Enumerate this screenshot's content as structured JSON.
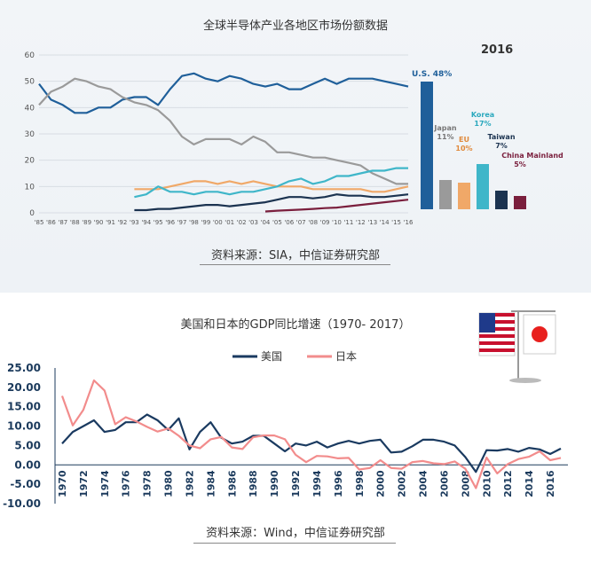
{
  "top": {
    "title": "全球半导体产业各地区市场份额数据",
    "source": "资料来源：SIA，中信证券研究部",
    "year_label": "2016"
  },
  "bottom": {
    "title": "美国和日本的GDP同比增速（1970- 2017）",
    "source": "资料来源：Wind，中信证券研究部"
  },
  "colors": {
    "us": "#1f5f9a",
    "japan": "#9a9a9a",
    "eu": "#f0a868",
    "korea": "#3fb6c9",
    "taiwan": "#1b3350",
    "china": "#7a1f3d",
    "us_gdp": "#1a3a60",
    "jp_gdp": "#f28c8c"
  },
  "chart_data": [
    {
      "type": "line",
      "title": "全球半导体产业各地区市场份额数据",
      "x": [
        "'85",
        "'86",
        "'87",
        "'88",
        "'89",
        "'90",
        "'91",
        "'92",
        "'93",
        "'94",
        "'95",
        "'96",
        "'97",
        "'98",
        "'99",
        "'00",
        "'01",
        "'02",
        "'03",
        "'04",
        "'05",
        "'06",
        "'07",
        "'08",
        "'09",
        "'10",
        "'11",
        "'12",
        "'13",
        "'14",
        "'15",
        "'16"
      ],
      "ylim": [
        0,
        60
      ],
      "yticks": [
        0,
        10,
        20,
        30,
        40,
        50,
        60
      ],
      "series": [
        {
          "key": "us",
          "values": [
            49,
            43,
            41,
            38,
            38,
            40,
            40,
            43,
            44,
            44,
            41,
            47,
            52,
            53,
            51,
            50,
            52,
            51,
            49,
            48,
            49,
            47,
            47,
            49,
            51,
            49,
            51,
            51,
            51,
            50,
            49,
            48
          ]
        },
        {
          "key": "japan",
          "values": [
            41,
            46,
            48,
            51,
            50,
            48,
            47,
            44,
            42,
            41,
            39,
            35,
            29,
            26,
            28,
            28,
            28,
            26,
            29,
            27,
            23,
            23,
            22,
            21,
            21,
            20,
            19,
            18,
            15,
            13,
            11,
            11
          ]
        },
        {
          "key": "eu",
          "values": [
            null,
            null,
            null,
            null,
            null,
            null,
            null,
            null,
            9,
            9,
            9,
            10,
            11,
            12,
            12,
            11,
            12,
            11,
            12,
            11,
            10,
            10,
            10,
            9,
            9,
            9,
            9,
            9,
            8,
            8,
            9,
            10
          ]
        },
        {
          "key": "korea",
          "values": [
            null,
            null,
            null,
            null,
            null,
            null,
            null,
            null,
            6,
            7,
            10,
            8,
            8,
            7,
            8,
            8,
            7,
            8,
            8,
            9,
            10,
            12,
            13,
            11,
            12,
            14,
            14,
            15,
            16,
            16,
            17,
            17
          ]
        },
        {
          "key": "taiwan",
          "values": [
            null,
            null,
            null,
            null,
            null,
            null,
            null,
            null,
            1,
            1,
            1.5,
            1.5,
            2,
            2.5,
            3,
            3,
            2.5,
            3,
            3.5,
            4,
            5,
            6,
            6,
            5.5,
            6,
            7,
            6.5,
            6.5,
            6,
            6,
            6.5,
            7
          ]
        },
        {
          "key": "china",
          "values": [
            null,
            null,
            null,
            null,
            null,
            null,
            null,
            null,
            null,
            null,
            null,
            null,
            null,
            null,
            null,
            null,
            null,
            null,
            null,
            0.5,
            0.8,
            1,
            1.2,
            1.5,
            1.8,
            2,
            2.5,
            3,
            3.5,
            4,
            4.5,
            5
          ]
        }
      ]
    },
    {
      "type": "bar",
      "title": "2016",
      "categories": [
        "U.S.",
        "Japan",
        "EU",
        "Korea",
        "Taiwan",
        "China Mainland"
      ],
      "labels": [
        "U.S. 48%",
        "Japan 11%",
        "EU 10%",
        "Korea 17%",
        "Taiwan 7%",
        "China Mainland 5%"
      ],
      "values": [
        48,
        11,
        10,
        17,
        7,
        5
      ]
    },
    {
      "type": "line",
      "title": "美国和日本的GDP同比增速（1970- 2017）",
      "x": [
        1970,
        1971,
        1972,
        1973,
        1974,
        1975,
        1976,
        1977,
        1978,
        1979,
        1980,
        1981,
        1982,
        1983,
        1984,
        1985,
        1986,
        1987,
        1988,
        1989,
        1990,
        1991,
        1992,
        1993,
        1994,
        1995,
        1996,
        1997,
        1998,
        1999,
        2000,
        2001,
        2002,
        2003,
        2004,
        2005,
        2006,
        2007,
        2008,
        2009,
        2010,
        2011,
        2012,
        2013,
        2014,
        2015,
        2016,
        2017
      ],
      "xticks": [
        1970,
        1972,
        1974,
        1976,
        1978,
        1980,
        1982,
        1984,
        1986,
        1988,
        1990,
        1992,
        1994,
        1996,
        1998,
        2000,
        2002,
        2004,
        2006,
        2008,
        2010,
        2012,
        2014,
        2016
      ],
      "ylim": [
        -10,
        25
      ],
      "yticks": [
        "25.00",
        "20.00",
        "15.00",
        "10.00",
        "5.00",
        "0.00",
        "-5.00",
        "-10.00"
      ],
      "legend": [
        "美国",
        "日本"
      ],
      "series": [
        {
          "name": "美国",
          "values": [
            5.5,
            8.5,
            10,
            11.5,
            8.5,
            9,
            11,
            11,
            13,
            11.5,
            9,
            12,
            4,
            8.5,
            11,
            7,
            5.5,
            6,
            7.5,
            7.5,
            5.5,
            3.5,
            5.5,
            5,
            6,
            4.5,
            5.5,
            6.2,
            5.5,
            6.2,
            6.5,
            3.2,
            3.4,
            4.8,
            6.5,
            6.5,
            6,
            5,
            2,
            -1.8,
            3.8,
            3.7,
            4.1,
            3.4,
            4.4,
            4,
            2.8,
            4.2
          ]
        },
        {
          "name": "日本",
          "values": [
            17.8,
            10.2,
            14.2,
            21.8,
            19.2,
            10.5,
            12.3,
            11.2,
            9.8,
            8.6,
            9.4,
            7.5,
            5,
            4.3,
            6.6,
            7.2,
            4.5,
            4.1,
            7.1,
            7.6,
            7.6,
            6.6,
            2.6,
            0.7,
            2.3,
            2.2,
            1.7,
            1.8,
            -1.2,
            -0.8,
            1.2,
            -0.8,
            -1,
            0.7,
            1,
            0.4,
            0.2,
            0.9,
            -1,
            -6,
            1.9,
            -2.2,
            0.2,
            1.5,
            2.1,
            3.5,
            1.2,
            1.8
          ]
        }
      ]
    }
  ]
}
